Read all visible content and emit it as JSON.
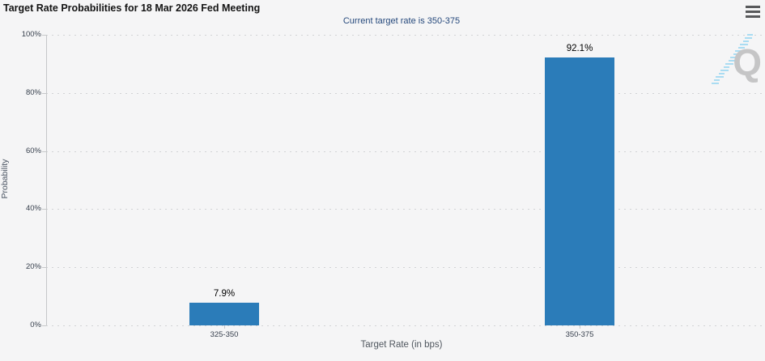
{
  "header": {
    "title": "Target Rate Probabilities for 18 Mar 2026 Fed Meeting",
    "menu_icon": "hamburger-icon"
  },
  "subtitle": "Current target rate is 350-375",
  "watermark": {
    "letter": "Q"
  },
  "colors": {
    "bar": "#2b7cb9",
    "subtitle_text": "#26497c",
    "page_background": "#f5f5f6",
    "gridline": "#d1d3d5"
  },
  "chart_data": {
    "type": "bar",
    "title": "Target Rate Probabilities for 18 Mar 2026 Fed Meeting",
    "subtitle": "Current target rate is 350-375",
    "categories": [
      "325-350",
      "350-375"
    ],
    "values": [
      7.9,
      92.1
    ],
    "value_labels": [
      "7.9%",
      "92.1%"
    ],
    "xlabel": "Target Rate (in bps)",
    "ylabel": "Probability",
    "ylim": [
      0,
      100
    ],
    "ytick_values": [
      0,
      20,
      40,
      60,
      80,
      100
    ],
    "ytick_labels": [
      "0%",
      "20%",
      "40%",
      "60%",
      "80%",
      "100%"
    ],
    "grid": "dotted horizontal gridlines",
    "legend_position": "none",
    "bar_color": "#2b7cb9"
  }
}
